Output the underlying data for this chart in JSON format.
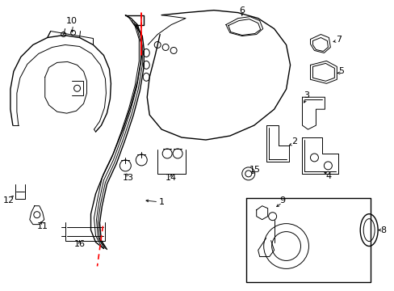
{
  "bg_color": "#ffffff",
  "line_color": "#000000",
  "red_color": "#ff0000",
  "figsize": [
    4.89,
    3.6
  ],
  "dpi": 100
}
